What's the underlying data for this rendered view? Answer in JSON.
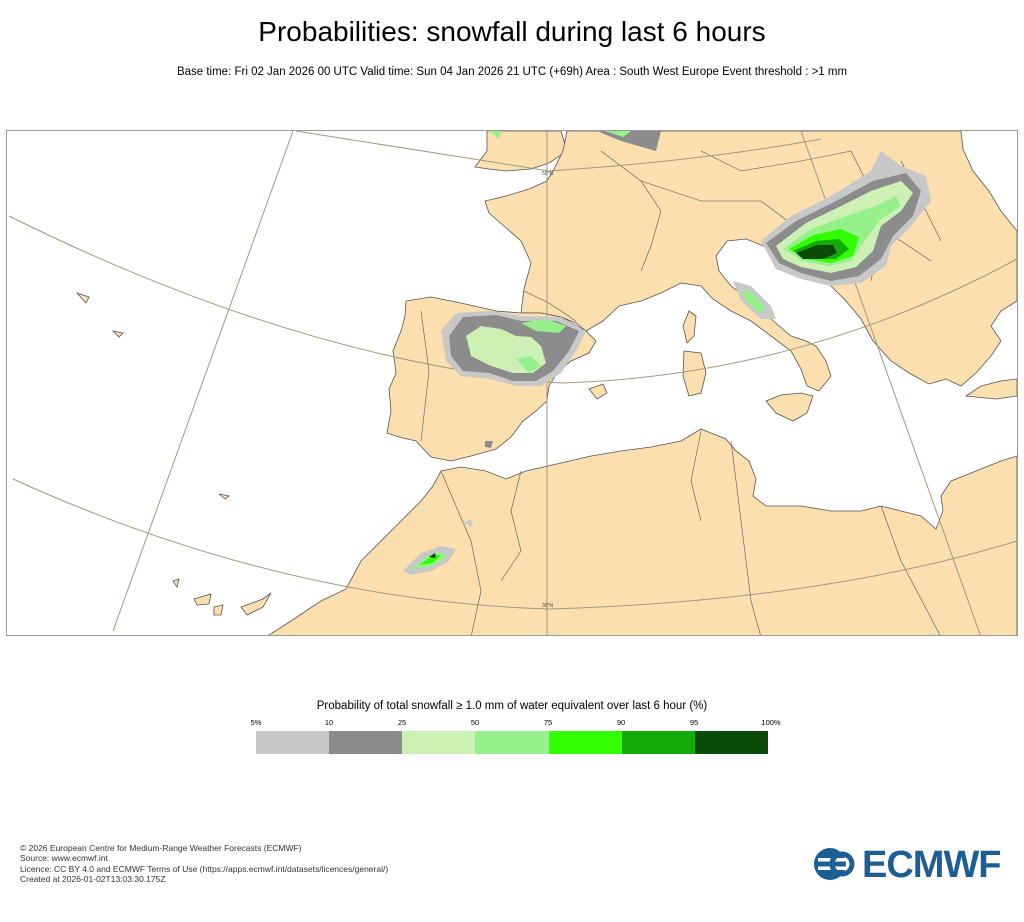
{
  "title": "Probabilities: snowfall during last 6 hours",
  "subtitle": "Base time: Fri 02 Jan 2026 00 UTC Valid time: Sun 04 Jan 2026 21 UTC (+69h) Area : South West Europe Event threshold : >1 mm",
  "map": {
    "graticule_labels": [
      "50°N",
      "30°N"
    ],
    "land_color": "#fbdfae",
    "sea_color": "#ffffff"
  },
  "legend": {
    "title": "Probability of total snowfall ≥ 1.0 mm of water equivalent over last 6 hour (%)",
    "ticks": [
      "5%",
      "10",
      "25",
      "50",
      "75",
      "90",
      "95",
      "100%"
    ],
    "colors": [
      "#c8c8c8",
      "#8c8c8c",
      "#cdf0b4",
      "#96f08c",
      "#32ff00",
      "#14aa0a",
      "#0a4b0a"
    ]
  },
  "footer": {
    "line1": "© 2026 European Centre for Medium-Range Weather Forecasts (ECMWF)",
    "line2": "Source: www.ecmwf.int",
    "line3": "Licence: CC BY 4.0 and ECMWF Terms of Use (https://apps.ecmwf.int/datasets/licences/general/)",
    "line4": "Created at 2026-01-02T13:03:30.175Z"
  },
  "logo": {
    "text": "ECMWF",
    "color": "#1e5f93"
  }
}
